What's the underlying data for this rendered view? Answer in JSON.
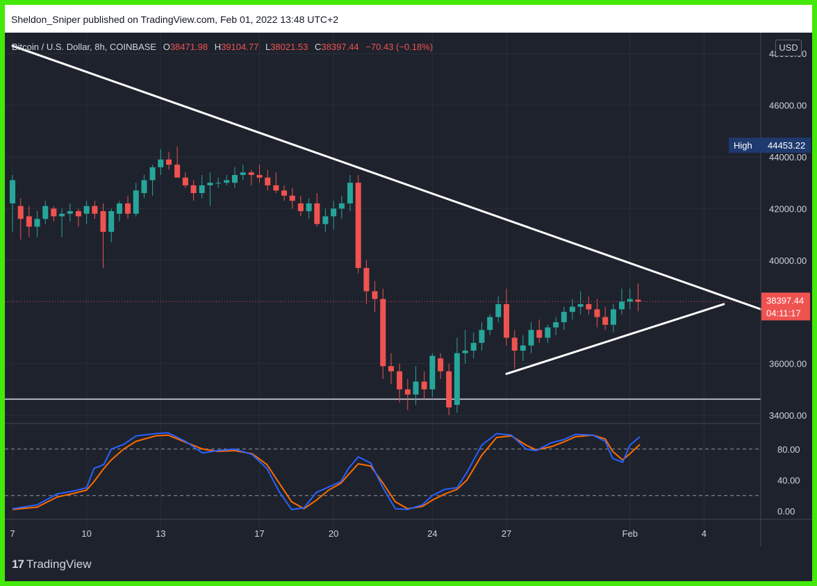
{
  "publisher_line": "Sheldon_Sniper published on TradingView.com, Feb 01, 2022 13:48 UTC+2",
  "legend": {
    "symbol": "Bitcoin / U.S. Dollar, 8h, COINBASE",
    "o_label": "O",
    "o_value": "38471.98",
    "h_label": "H",
    "h_value": "39104.77",
    "l_label": "L",
    "l_value": "38021.53",
    "c_label": "C",
    "c_value": "38397.44",
    "change": "−70.43 (−0.18%)"
  },
  "currency_button": "USD",
  "price_axis_labels": [
    "48000.00",
    "46000.00",
    "44000.00",
    "42000.00",
    "40000.00",
    "36000.00",
    "34000.00"
  ],
  "high_badge": {
    "label": "High",
    "value": "44453.22",
    "price": 44453.22
  },
  "last_price_badge": {
    "value": "38397.44",
    "countdown": "04:11:17",
    "price": 38397.44
  },
  "horizontal_support": 34620,
  "oscillator_axis_labels": [
    "80.00",
    "40.00",
    "0.00"
  ],
  "oscillator_levels": [
    80,
    20
  ],
  "time_axis_labels": [
    {
      "label": "7",
      "day": 7
    },
    {
      "label": "10",
      "day": 10
    },
    {
      "label": "13",
      "day": 13
    },
    {
      "label": "17",
      "day": 17
    },
    {
      "label": "20",
      "day": 20
    },
    {
      "label": "24",
      "day": 24
    },
    {
      "label": "27",
      "day": 27
    },
    {
      "label": "Feb",
      "day": 32
    },
    {
      "label": "4",
      "day": 35
    }
  ],
  "brand": "TradingView",
  "colors": {
    "up": "#26a69a",
    "down": "#ef5350",
    "background": "#1e222d",
    "frame": "#44e80a",
    "trendline": "#ffffff",
    "k_line": "#2962ff",
    "d_line": "#ff6d00",
    "high_badge": "#1e3a6e"
  },
  "chart_data": {
    "type": "candlestick",
    "title": "Bitcoin / U.S. Dollar, 8h, COINBASE",
    "interval": "8h",
    "x_unit": "day (January 2022, 8h bars)",
    "ylim": [
      33500,
      48500
    ],
    "candles": [
      {
        "t": 7.0,
        "o": 42200,
        "h": 43300,
        "l": 41100,
        "c": 43100
      },
      {
        "t": 7.33,
        "o": 42100,
        "h": 42400,
        "l": 40800,
        "c": 41600
      },
      {
        "t": 7.67,
        "o": 41700,
        "h": 42100,
        "l": 40900,
        "c": 41300
      },
      {
        "t": 8.0,
        "o": 41300,
        "h": 41900,
        "l": 40900,
        "c": 41600
      },
      {
        "t": 8.33,
        "o": 41600,
        "h": 42300,
        "l": 41400,
        "c": 42100
      },
      {
        "t": 8.67,
        "o": 42000,
        "h": 42100,
        "l": 41500,
        "c": 41700
      },
      {
        "t": 9.0,
        "o": 41700,
        "h": 42000,
        "l": 40900,
        "c": 41800
      },
      {
        "t": 9.33,
        "o": 41800,
        "h": 42200,
        "l": 41500,
        "c": 41900
      },
      {
        "t": 9.67,
        "o": 41900,
        "h": 42000,
        "l": 41300,
        "c": 41700
      },
      {
        "t": 10.0,
        "o": 41800,
        "h": 42300,
        "l": 41400,
        "c": 42100
      },
      {
        "t": 10.33,
        "o": 42100,
        "h": 42300,
        "l": 41600,
        "c": 41800
      },
      {
        "t": 10.67,
        "o": 41900,
        "h": 42200,
        "l": 39700,
        "c": 41100
      },
      {
        "t": 11.0,
        "o": 41100,
        "h": 42000,
        "l": 40700,
        "c": 41900
      },
      {
        "t": 11.33,
        "o": 41800,
        "h": 42300,
        "l": 41500,
        "c": 42200
      },
      {
        "t": 11.67,
        "o": 42200,
        "h": 42500,
        "l": 41600,
        "c": 41800
      },
      {
        "t": 12.0,
        "o": 41800,
        "h": 43000,
        "l": 41700,
        "c": 42700
      },
      {
        "t": 12.33,
        "o": 42600,
        "h": 43300,
        "l": 42400,
        "c": 43100
      },
      {
        "t": 12.67,
        "o": 43100,
        "h": 43700,
        "l": 42500,
        "c": 43600
      },
      {
        "t": 13.0,
        "o": 43600,
        "h": 44300,
        "l": 43300,
        "c": 43900
      },
      {
        "t": 13.33,
        "o": 43900,
        "h": 44200,
        "l": 43500,
        "c": 43700
      },
      {
        "t": 13.67,
        "o": 43700,
        "h": 44400,
        "l": 43200,
        "c": 43200
      },
      {
        "t": 14.0,
        "o": 43200,
        "h": 43400,
        "l": 42800,
        "c": 42900
      },
      {
        "t": 14.33,
        "o": 42900,
        "h": 43100,
        "l": 42300,
        "c": 42600
      },
      {
        "t": 14.67,
        "o": 42600,
        "h": 43300,
        "l": 42400,
        "c": 42900
      },
      {
        "t": 15.0,
        "o": 42900,
        "h": 43400,
        "l": 42100,
        "c": 43000
      },
      {
        "t": 15.33,
        "o": 43000,
        "h": 43200,
        "l": 42800,
        "c": 43000
      },
      {
        "t": 15.67,
        "o": 43000,
        "h": 43300,
        "l": 42900,
        "c": 43100
      },
      {
        "t": 16.0,
        "o": 43000,
        "h": 43600,
        "l": 42800,
        "c": 43300
      },
      {
        "t": 16.33,
        "o": 43300,
        "h": 43700,
        "l": 43100,
        "c": 43400
      },
      {
        "t": 16.67,
        "o": 43400,
        "h": 43500,
        "l": 42900,
        "c": 43300
      },
      {
        "t": 17.0,
        "o": 43300,
        "h": 43700,
        "l": 43000,
        "c": 43200
      },
      {
        "t": 17.33,
        "o": 43200,
        "h": 43500,
        "l": 42700,
        "c": 42900
      },
      {
        "t": 17.67,
        "o": 42900,
        "h": 43400,
        "l": 42600,
        "c": 42700
      },
      {
        "t": 18.0,
        "o": 42700,
        "h": 42900,
        "l": 42300,
        "c": 42500
      },
      {
        "t": 18.33,
        "o": 42500,
        "h": 42800,
        "l": 42000,
        "c": 42300
      },
      {
        "t": 18.67,
        "o": 42200,
        "h": 42500,
        "l": 41700,
        "c": 41900
      },
      {
        "t": 19.0,
        "o": 41900,
        "h": 42400,
        "l": 41600,
        "c": 42200
      },
      {
        "t": 19.33,
        "o": 42200,
        "h": 42600,
        "l": 41300,
        "c": 41400
      },
      {
        "t": 19.67,
        "o": 41400,
        "h": 42000,
        "l": 41100,
        "c": 41700
      },
      {
        "t": 20.0,
        "o": 41700,
        "h": 42300,
        "l": 41200,
        "c": 42000
      },
      {
        "t": 20.33,
        "o": 42000,
        "h": 42500,
        "l": 41600,
        "c": 42200
      },
      {
        "t": 20.67,
        "o": 42200,
        "h": 43300,
        "l": 41900,
        "c": 43000
      },
      {
        "t": 21.0,
        "o": 43000,
        "h": 43300,
        "l": 39500,
        "c": 39700
      },
      {
        "t": 21.33,
        "o": 39700,
        "h": 40000,
        "l": 38300,
        "c": 38800
      },
      {
        "t": 21.67,
        "o": 38800,
        "h": 39200,
        "l": 38000,
        "c": 38500
      },
      {
        "t": 22.0,
        "o": 38500,
        "h": 38900,
        "l": 35400,
        "c": 35900
      },
      {
        "t": 22.33,
        "o": 35900,
        "h": 36400,
        "l": 35200,
        "c": 35700
      },
      {
        "t": 22.67,
        "o": 35700,
        "h": 36000,
        "l": 34500,
        "c": 35000
      },
      {
        "t": 23.0,
        "o": 35000,
        "h": 35400,
        "l": 34200,
        "c": 34800
      },
      {
        "t": 23.33,
        "o": 34800,
        "h": 35900,
        "l": 34400,
        "c": 35300
      },
      {
        "t": 23.67,
        "o": 35300,
        "h": 35700,
        "l": 34600,
        "c": 35000
      },
      {
        "t": 24.0,
        "o": 35000,
        "h": 36400,
        "l": 34700,
        "c": 36300
      },
      {
        "t": 24.33,
        "o": 36200,
        "h": 36400,
        "l": 35400,
        "c": 35700
      },
      {
        "t": 24.67,
        "o": 35700,
        "h": 36000,
        "l": 34000,
        "c": 34300
      },
      {
        "t": 25.0,
        "o": 34400,
        "h": 37000,
        "l": 34100,
        "c": 36400
      },
      {
        "t": 25.33,
        "o": 36400,
        "h": 37300,
        "l": 36000,
        "c": 36500
      },
      {
        "t": 25.67,
        "o": 36500,
        "h": 37200,
        "l": 36200,
        "c": 36800
      },
      {
        "t": 26.0,
        "o": 36800,
        "h": 37600,
        "l": 36500,
        "c": 37300
      },
      {
        "t": 26.33,
        "o": 37300,
        "h": 37900,
        "l": 37100,
        "c": 37800
      },
      {
        "t": 26.67,
        "o": 37800,
        "h": 38600,
        "l": 37600,
        "c": 38300
      },
      {
        "t": 27.0,
        "o": 38300,
        "h": 38900,
        "l": 36700,
        "c": 37000
      },
      {
        "t": 27.33,
        "o": 37000,
        "h": 37300,
        "l": 35800,
        "c": 36500
      },
      {
        "t": 27.67,
        "o": 36500,
        "h": 37100,
        "l": 36100,
        "c": 36700
      },
      {
        "t": 28.0,
        "o": 36700,
        "h": 37600,
        "l": 36400,
        "c": 37300
      },
      {
        "t": 28.33,
        "o": 37300,
        "h": 37700,
        "l": 36800,
        "c": 37000
      },
      {
        "t": 28.67,
        "o": 37000,
        "h": 37500,
        "l": 36800,
        "c": 37400
      },
      {
        "t": 29.0,
        "o": 37400,
        "h": 37800,
        "l": 37100,
        "c": 37600
      },
      {
        "t": 29.33,
        "o": 37600,
        "h": 38200,
        "l": 37300,
        "c": 38000
      },
      {
        "t": 29.67,
        "o": 38000,
        "h": 38500,
        "l": 37700,
        "c": 38200
      },
      {
        "t": 30.0,
        "o": 38200,
        "h": 38800,
        "l": 37900,
        "c": 38300
      },
      {
        "t": 30.33,
        "o": 38300,
        "h": 38600,
        "l": 37900,
        "c": 38100
      },
      {
        "t": 30.67,
        "o": 38100,
        "h": 38500,
        "l": 37400,
        "c": 37800
      },
      {
        "t": 31.0,
        "o": 37800,
        "h": 38200,
        "l": 37300,
        "c": 37500
      },
      {
        "t": 31.33,
        "o": 37500,
        "h": 38300,
        "l": 37200,
        "c": 38100
      },
      {
        "t": 31.67,
        "o": 38100,
        "h": 38900,
        "l": 37900,
        "c": 38400
      },
      {
        "t": 32.0,
        "o": 38400,
        "h": 38900,
        "l": 38100,
        "c": 38500
      },
      {
        "t": 32.33,
        "o": 38472,
        "h": 39105,
        "l": 38022,
        "c": 38397
      }
    ],
    "trendlines": [
      {
        "name": "descending",
        "from": {
          "t": 7.0,
          "price": 48300
        },
        "to": {
          "t": 38.2,
          "price": 37800
        }
      },
      {
        "name": "ascending",
        "from": {
          "t": 27.0,
          "price": 35600
        },
        "to": {
          "t": 35.8,
          "price": 38300
        }
      }
    ],
    "oscillator": {
      "ylim": [
        -5,
        110
      ],
      "levels": [
        80,
        20
      ],
      "k": [
        [
          7.0,
          3
        ],
        [
          8.0,
          8
        ],
        [
          8.8,
          22
        ],
        [
          9.5,
          26
        ],
        [
          10.0,
          30
        ],
        [
          10.3,
          55
        ],
        [
          10.7,
          60
        ],
        [
          11.0,
          80
        ],
        [
          11.5,
          86
        ],
        [
          12.0,
          97
        ],
        [
          12.8,
          100
        ],
        [
          13.3,
          101
        ],
        [
          14.0,
          90
        ],
        [
          14.7,
          75
        ],
        [
          15.3,
          78
        ],
        [
          16.0,
          80
        ],
        [
          16.7,
          73
        ],
        [
          17.3,
          55
        ],
        [
          17.8,
          25
        ],
        [
          18.3,
          2
        ],
        [
          18.8,
          4
        ],
        [
          19.3,
          24
        ],
        [
          19.8,
          31
        ],
        [
          20.3,
          38
        ],
        [
          20.6,
          55
        ],
        [
          21.0,
          70
        ],
        [
          21.5,
          62
        ],
        [
          22.0,
          30
        ],
        [
          22.5,
          3
        ],
        [
          23.0,
          2
        ],
        [
          23.6,
          8
        ],
        [
          24.0,
          20
        ],
        [
          24.5,
          28
        ],
        [
          25.0,
          30
        ],
        [
          25.4,
          50
        ],
        [
          26.0,
          85
        ],
        [
          26.6,
          100
        ],
        [
          27.2,
          98
        ],
        [
          27.8,
          80
        ],
        [
          28.2,
          78
        ],
        [
          28.8,
          88
        ],
        [
          29.3,
          92
        ],
        [
          29.8,
          99
        ],
        [
          30.5,
          98
        ],
        [
          31.0,
          90
        ],
        [
          31.3,
          68
        ],
        [
          31.7,
          63
        ],
        [
          32.0,
          85
        ],
        [
          32.4,
          96
        ]
      ],
      "d": [
        [
          7.0,
          2
        ],
        [
          8.0,
          5
        ],
        [
          8.8,
          18
        ],
        [
          9.5,
          23
        ],
        [
          10.0,
          27
        ],
        [
          10.3,
          38
        ],
        [
          10.7,
          55
        ],
        [
          11.0,
          66
        ],
        [
          11.5,
          80
        ],
        [
          12.0,
          90
        ],
        [
          12.8,
          97
        ],
        [
          13.3,
          98
        ],
        [
          14.0,
          89
        ],
        [
          14.7,
          80
        ],
        [
          15.3,
          77
        ],
        [
          16.0,
          78
        ],
        [
          16.7,
          74
        ],
        [
          17.3,
          60
        ],
        [
          17.8,
          36
        ],
        [
          18.3,
          12
        ],
        [
          18.8,
          3
        ],
        [
          19.3,
          14
        ],
        [
          19.8,
          27
        ],
        [
          20.3,
          36
        ],
        [
          20.6,
          47
        ],
        [
          21.0,
          61
        ],
        [
          21.5,
          58
        ],
        [
          22.0,
          36
        ],
        [
          22.5,
          12
        ],
        [
          23.0,
          3
        ],
        [
          23.6,
          6
        ],
        [
          24.0,
          14
        ],
        [
          24.5,
          22
        ],
        [
          25.0,
          28
        ],
        [
          25.4,
          40
        ],
        [
          26.0,
          72
        ],
        [
          26.6,
          95
        ],
        [
          27.2,
          97
        ],
        [
          27.8,
          85
        ],
        [
          28.2,
          79
        ],
        [
          28.8,
          83
        ],
        [
          29.3,
          89
        ],
        [
          29.8,
          96
        ],
        [
          30.5,
          98
        ],
        [
          31.0,
          93
        ],
        [
          31.3,
          77
        ],
        [
          31.7,
          66
        ],
        [
          32.0,
          74
        ],
        [
          32.4,
          86
        ]
      ]
    }
  }
}
